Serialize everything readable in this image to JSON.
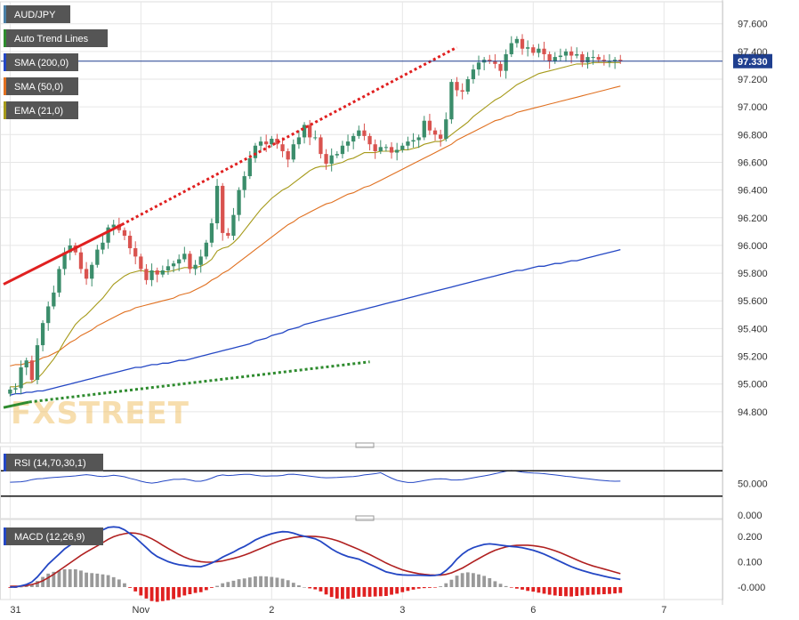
{
  "chart_data": [
    {
      "type": "candlestick",
      "title": "AUD/JPY",
      "legend": [
        {
          "label": "AUD/JPY",
          "color": "#4a7fa6"
        },
        {
          "label": "Auto Trend Lines",
          "color": "#2e8b2e"
        },
        {
          "label": "SMA (200,0)",
          "color": "#2447c4"
        },
        {
          "label": "SMA (50,0)",
          "color": "#e07020"
        },
        {
          "label": "EMA (21,0)",
          "color": "#a69a1a"
        }
      ],
      "x_tick_labels": [
        "31",
        "Nov",
        "2",
        "3",
        "6",
        "7"
      ],
      "x_tick_positions": [
        0,
        24,
        48,
        72,
        96,
        120
      ],
      "y_ticks": [
        94.8,
        95.0,
        95.2,
        95.4,
        95.6,
        95.8,
        96.0,
        96.2,
        96.4,
        96.6,
        96.8,
        97.0,
        97.2,
        97.4,
        97.6
      ],
      "y_tick_labels": [
        "94.800",
        "95.000",
        "95.200",
        "95.400",
        "95.600",
        "95.800",
        "96.000",
        "96.200",
        "96.400",
        "96.600",
        "96.800",
        "97.000",
        "97.200",
        "97.400",
        "97.600"
      ],
      "ylim": [
        94.6,
        97.72
      ],
      "xlim": [
        -1.2,
        126
      ],
      "last_price": 97.33,
      "last_price_label": "97.330",
      "bull_color": "#3b8d6b",
      "bear_color": "#d9534f",
      "closes": [
        94.96,
        94.97,
        95.12,
        95.17,
        95.03,
        95.28,
        95.44,
        95.56,
        95.66,
        95.83,
        95.95,
        96.0,
        95.95,
        95.83,
        95.76,
        95.86,
        95.97,
        96.02,
        96.13,
        96.15,
        96.11,
        96.07,
        95.98,
        95.92,
        95.83,
        95.75,
        95.82,
        95.79,
        95.82,
        95.85,
        95.87,
        95.9,
        95.94,
        95.83,
        95.86,
        95.92,
        96.02,
        96.16,
        96.43,
        96.09,
        96.07,
        96.22,
        96.4,
        96.5,
        96.63,
        96.72,
        96.75,
        96.73,
        96.77,
        96.73,
        96.68,
        96.62,
        96.73,
        96.78,
        96.87,
        96.78,
        96.78,
        96.66,
        96.59,
        96.65,
        96.66,
        96.72,
        96.75,
        96.79,
        96.83,
        96.79,
        96.73,
        96.68,
        96.71,
        96.71,
        96.67,
        96.69,
        96.72,
        96.75,
        96.76,
        96.78,
        96.9,
        96.83,
        96.8,
        96.77,
        96.91,
        97.18,
        97.12,
        97.11,
        97.2,
        97.27,
        97.32,
        97.34,
        97.33,
        97.31,
        97.26,
        97.38,
        97.46,
        97.49,
        97.42,
        97.43,
        97.39,
        97.42,
        97.38,
        97.33,
        97.36,
        97.37,
        97.4,
        97.37,
        97.38,
        97.32,
        97.36,
        97.36,
        97.34,
        97.33,
        97.33,
        97.34,
        97.33
      ],
      "ema21": [
        94.98,
        94.98,
        94.99,
        95.01,
        95.01,
        95.04,
        95.08,
        95.13,
        95.18,
        95.24,
        95.31,
        95.37,
        95.43,
        95.47,
        95.5,
        95.54,
        95.58,
        95.62,
        95.67,
        95.72,
        95.75,
        95.78,
        95.8,
        95.81,
        95.82,
        95.81,
        95.81,
        95.81,
        95.81,
        95.81,
        95.82,
        95.83,
        95.84,
        95.84,
        95.84,
        95.85,
        95.87,
        95.9,
        95.96,
        95.98,
        95.99,
        96.02,
        96.06,
        96.11,
        96.16,
        96.21,
        96.26,
        96.3,
        96.34,
        96.37,
        96.4,
        96.42,
        96.45,
        96.48,
        96.51,
        96.54,
        96.56,
        96.57,
        96.57,
        96.58,
        96.59,
        96.6,
        96.62,
        96.63,
        96.65,
        96.67,
        96.67,
        96.67,
        96.68,
        96.68,
        96.68,
        96.68,
        96.69,
        96.69,
        96.7,
        96.71,
        96.73,
        96.74,
        96.75,
        96.75,
        96.77,
        96.8,
        96.83,
        96.86,
        96.89,
        96.93,
        96.96,
        96.99,
        97.02,
        97.05,
        97.07,
        97.1,
        97.13,
        97.16,
        97.18,
        97.2,
        97.22,
        97.24,
        97.25,
        97.26,
        97.27,
        97.28,
        97.29,
        97.3,
        97.31,
        97.31,
        97.31,
        97.32,
        97.32,
        97.32,
        97.32,
        97.32,
        97.32
      ],
      "sma50": [
        95.13,
        95.14,
        95.14,
        95.15,
        95.16,
        95.17,
        95.19,
        95.2,
        95.22,
        95.24,
        95.27,
        95.3,
        95.32,
        95.35,
        95.37,
        95.39,
        95.42,
        95.44,
        95.46,
        95.48,
        95.5,
        95.52,
        95.53,
        95.55,
        95.56,
        95.57,
        95.58,
        95.59,
        95.6,
        95.61,
        95.62,
        95.64,
        95.65,
        95.66,
        95.68,
        95.7,
        95.72,
        95.75,
        95.77,
        95.8,
        95.82,
        95.85,
        95.88,
        95.91,
        95.94,
        95.97,
        96.0,
        96.03,
        96.06,
        96.09,
        96.12,
        96.15,
        96.17,
        96.2,
        96.22,
        96.24,
        96.26,
        96.28,
        96.3,
        96.31,
        96.33,
        96.35,
        96.37,
        96.38,
        96.4,
        96.42,
        96.43,
        96.45,
        96.47,
        96.49,
        96.51,
        96.53,
        96.55,
        96.57,
        96.59,
        96.61,
        96.63,
        96.65,
        96.67,
        96.69,
        96.71,
        96.73,
        96.76,
        96.78,
        96.8,
        96.82,
        96.84,
        96.86,
        96.88,
        96.9,
        96.91,
        96.93,
        96.94,
        96.96,
        96.97,
        96.98,
        96.99,
        97.0,
        97.01,
        97.02,
        97.03,
        97.04,
        97.05,
        97.06,
        97.07,
        97.08,
        97.09,
        97.1,
        97.11,
        97.12,
        97.13,
        97.14,
        97.15
      ],
      "sma200": [
        94.92,
        94.93,
        94.93,
        94.94,
        94.94,
        94.95,
        94.95,
        94.96,
        94.97,
        94.98,
        94.99,
        95.0,
        95.01,
        95.02,
        95.03,
        95.04,
        95.05,
        95.06,
        95.07,
        95.08,
        95.09,
        95.1,
        95.11,
        95.12,
        95.12,
        95.13,
        95.14,
        95.14,
        95.15,
        95.15,
        95.16,
        95.17,
        95.17,
        95.18,
        95.19,
        95.2,
        95.21,
        95.22,
        95.23,
        95.24,
        95.25,
        95.26,
        95.27,
        95.28,
        95.29,
        95.31,
        95.32,
        95.33,
        95.35,
        95.36,
        95.37,
        95.39,
        95.4,
        95.41,
        95.43,
        95.44,
        95.45,
        95.46,
        95.47,
        95.48,
        95.49,
        95.5,
        95.51,
        95.52,
        95.53,
        95.54,
        95.55,
        95.56,
        95.57,
        95.58,
        95.59,
        95.6,
        95.61,
        95.62,
        95.63,
        95.64,
        95.65,
        95.66,
        95.67,
        95.68,
        95.69,
        95.7,
        95.71,
        95.72,
        95.73,
        95.74,
        95.75,
        95.76,
        95.77,
        95.78,
        95.79,
        95.8,
        95.81,
        95.82,
        95.82,
        95.83,
        95.84,
        95.85,
        95.85,
        95.86,
        95.87,
        95.87,
        95.88,
        95.89,
        95.89,
        95.9,
        95.91,
        95.92,
        95.93,
        95.94,
        95.95,
        95.96,
        95.97
      ],
      "trend_lines": [
        {
          "name": "resistance-solid",
          "color": "#e02020",
          "dash": false,
          "from": [
            -1.2,
            95.72
          ],
          "to": [
            20.5,
            96.15
          ]
        },
        {
          "name": "resistance-dotted",
          "color": "#e02020",
          "dash": true,
          "from": [
            20.5,
            96.15
          ],
          "to": [
            82,
            97.43
          ]
        },
        {
          "name": "support-solid",
          "color": "#2e8b2e",
          "dash": false,
          "from": [
            -1.2,
            94.83
          ],
          "to": [
            3.5,
            94.87
          ]
        },
        {
          "name": "support-dotted",
          "color": "#2e8b2e",
          "dash": true,
          "from": [
            3.5,
            94.87
          ],
          "to": [
            66,
            95.16
          ]
        }
      ]
    },
    {
      "type": "line",
      "title": "RSI (14,70,30,1)",
      "y_tick_labels": [
        "50.000",
        "0.000"
      ],
      "y_ticks": [
        50,
        0
      ],
      "overbought": 70,
      "oversold": 30,
      "ylim": [
        0,
        100
      ],
      "color": "#2447c4",
      "values": [
        52,
        52.2,
        52.7,
        54,
        56,
        57.3,
        57.8,
        58.8,
        59.5,
        60,
        60.7,
        61.2,
        62,
        63,
        64,
        63,
        61.5,
        61,
        61.8,
        63,
        62,
        60.5,
        58,
        56,
        53.5,
        51.5,
        50.5,
        51.5,
        53.5,
        55,
        56.5,
        56.5,
        57,
        55.5,
        53.5,
        53.5,
        55.5,
        58.5,
        62,
        63.5,
        62.5,
        63,
        64,
        64.5,
        64.5,
        63,
        62,
        61.7,
        62,
        62,
        62.7,
        64.5,
        64.7,
        63.7,
        62.7,
        61.5,
        60.5,
        59.5,
        59,
        59.2,
        59.5,
        60,
        60.5,
        61,
        62,
        63.5,
        64.5,
        65.5,
        67,
        62.5,
        58.5,
        55,
        53,
        51.5,
        51.5,
        53,
        54.5,
        56,
        57,
        57.3,
        57,
        55.5,
        55.5,
        56,
        57.5,
        59,
        60.5,
        62,
        63.5,
        65.5,
        67.5,
        69.5,
        70.5,
        69.5,
        68,
        67,
        66.5,
        66.2,
        65.5,
        64.5,
        63.5,
        62.5,
        61.2,
        60.5,
        59.3,
        58.3,
        57.3,
        56.3,
        55.3,
        54.5,
        53.8,
        53.5,
        53.6
      ]
    },
    {
      "type": "bar+line",
      "title": "MACD (12,26,9)",
      "y_tick_labels": [
        "0.200",
        "0.100",
        "-0.000"
      ],
      "y_ticks": [
        0.2,
        0.1,
        0.0
      ],
      "ylim": [
        -0.035,
        0.245
      ],
      "macd_color": "#2447c4",
      "signal_color": "#b02020",
      "hist_pos_color": "#999999",
      "hist_neg_color": "#e02020",
      "macd": [
        0.0,
        0.0,
        0.005,
        0.01,
        0.02,
        0.04,
        0.065,
        0.09,
        0.11,
        0.13,
        0.15,
        0.165,
        0.18,
        0.19,
        0.195,
        0.205,
        0.215,
        0.225,
        0.235,
        0.237,
        0.235,
        0.225,
        0.21,
        0.195,
        0.175,
        0.155,
        0.135,
        0.12,
        0.11,
        0.1,
        0.093,
        0.088,
        0.085,
        0.082,
        0.081,
        0.08,
        0.086,
        0.095,
        0.105,
        0.118,
        0.128,
        0.138,
        0.15,
        0.16,
        0.172,
        0.185,
        0.195,
        0.203,
        0.21,
        0.215,
        0.218,
        0.217,
        0.212,
        0.205,
        0.2,
        0.195,
        0.19,
        0.18,
        0.165,
        0.15,
        0.138,
        0.128,
        0.12,
        0.115,
        0.11,
        0.1,
        0.09,
        0.08,
        0.07,
        0.06,
        0.055,
        0.05,
        0.048,
        0.047,
        0.047,
        0.047,
        0.046,
        0.045,
        0.046,
        0.05,
        0.065,
        0.085,
        0.11,
        0.13,
        0.145,
        0.155,
        0.162,
        0.168,
        0.17,
        0.168,
        0.165,
        0.162,
        0.16,
        0.158,
        0.155,
        0.15,
        0.145,
        0.138,
        0.13,
        0.12,
        0.11,
        0.1,
        0.09,
        0.08,
        0.072,
        0.065,
        0.059,
        0.053,
        0.048,
        0.043,
        0.038,
        0.034,
        0.03
      ],
      "signal": [
        0.003,
        0.003,
        0.004,
        0.006,
        0.01,
        0.016,
        0.025,
        0.037,
        0.05,
        0.065,
        0.08,
        0.095,
        0.11,
        0.125,
        0.138,
        0.15,
        0.162,
        0.175,
        0.188,
        0.198,
        0.205,
        0.21,
        0.213,
        0.212,
        0.208,
        0.2,
        0.19,
        0.178,
        0.165,
        0.152,
        0.14,
        0.128,
        0.118,
        0.11,
        0.104,
        0.1,
        0.098,
        0.098,
        0.1,
        0.103,
        0.108,
        0.113,
        0.119,
        0.126,
        0.134,
        0.143,
        0.152,
        0.161,
        0.17,
        0.178,
        0.185,
        0.19,
        0.195,
        0.198,
        0.2,
        0.2,
        0.199,
        0.197,
        0.194,
        0.189,
        0.183,
        0.175,
        0.166,
        0.157,
        0.148,
        0.138,
        0.128,
        0.117,
        0.106,
        0.095,
        0.085,
        0.076,
        0.068,
        0.062,
        0.057,
        0.053,
        0.05,
        0.048,
        0.047,
        0.047,
        0.05,
        0.056,
        0.065,
        0.075,
        0.087,
        0.1,
        0.112,
        0.124,
        0.135,
        0.145,
        0.152,
        0.158,
        0.162,
        0.164,
        0.165,
        0.165,
        0.163,
        0.16,
        0.156,
        0.15,
        0.143,
        0.135,
        0.126,
        0.117,
        0.107,
        0.098,
        0.09,
        0.083,
        0.077,
        0.071,
        0.065,
        0.059,
        0.053
      ],
      "histogram": [
        -0.003,
        -0.003,
        0.001,
        0.004,
        0.01,
        0.024,
        0.04,
        0.053,
        0.06,
        0.065,
        0.07,
        0.07,
        0.07,
        0.065,
        0.057,
        0.055,
        0.053,
        0.05,
        0.047,
        0.039,
        0.03,
        0.015,
        -0.003,
        -0.017,
        -0.033,
        -0.045,
        -0.055,
        -0.058,
        -0.055,
        -0.052,
        -0.047,
        -0.04,
        -0.033,
        -0.028,
        -0.023,
        -0.02,
        -0.012,
        -0.003,
        0.005,
        0.015,
        0.02,
        0.025,
        0.031,
        0.034,
        0.038,
        0.042,
        0.043,
        0.042,
        0.04,
        0.037,
        0.033,
        0.027,
        0.017,
        0.007,
        0.0,
        -0.005,
        -0.009,
        -0.017,
        -0.029,
        -0.039,
        -0.045,
        -0.047,
        -0.046,
        -0.042,
        -0.038,
        -0.038,
        -0.038,
        -0.037,
        -0.036,
        -0.035,
        -0.03,
        -0.026,
        -0.02,
        -0.015,
        -0.01,
        -0.006,
        -0.004,
        -0.003,
        -0.001,
        0.003,
        0.015,
        0.029,
        0.045,
        0.055,
        0.058,
        0.055,
        0.05,
        0.044,
        0.035,
        0.023,
        0.013,
        0.004,
        -0.002,
        -0.006,
        -0.01,
        -0.015,
        -0.018,
        -0.022,
        -0.026,
        -0.03,
        -0.033,
        -0.035,
        -0.036,
        -0.037,
        -0.035,
        -0.033,
        -0.031,
        -0.03,
        -0.029,
        -0.028,
        -0.027,
        -0.025,
        -0.023
      ]
    }
  ],
  "watermark": "FXSTREET",
  "colors": {
    "axis": "#333333",
    "grid": "#e6e6e6",
    "legend_bg": "#555555",
    "price_line": "#1f3f8f",
    "price_tag": "#1f3f8f"
  }
}
